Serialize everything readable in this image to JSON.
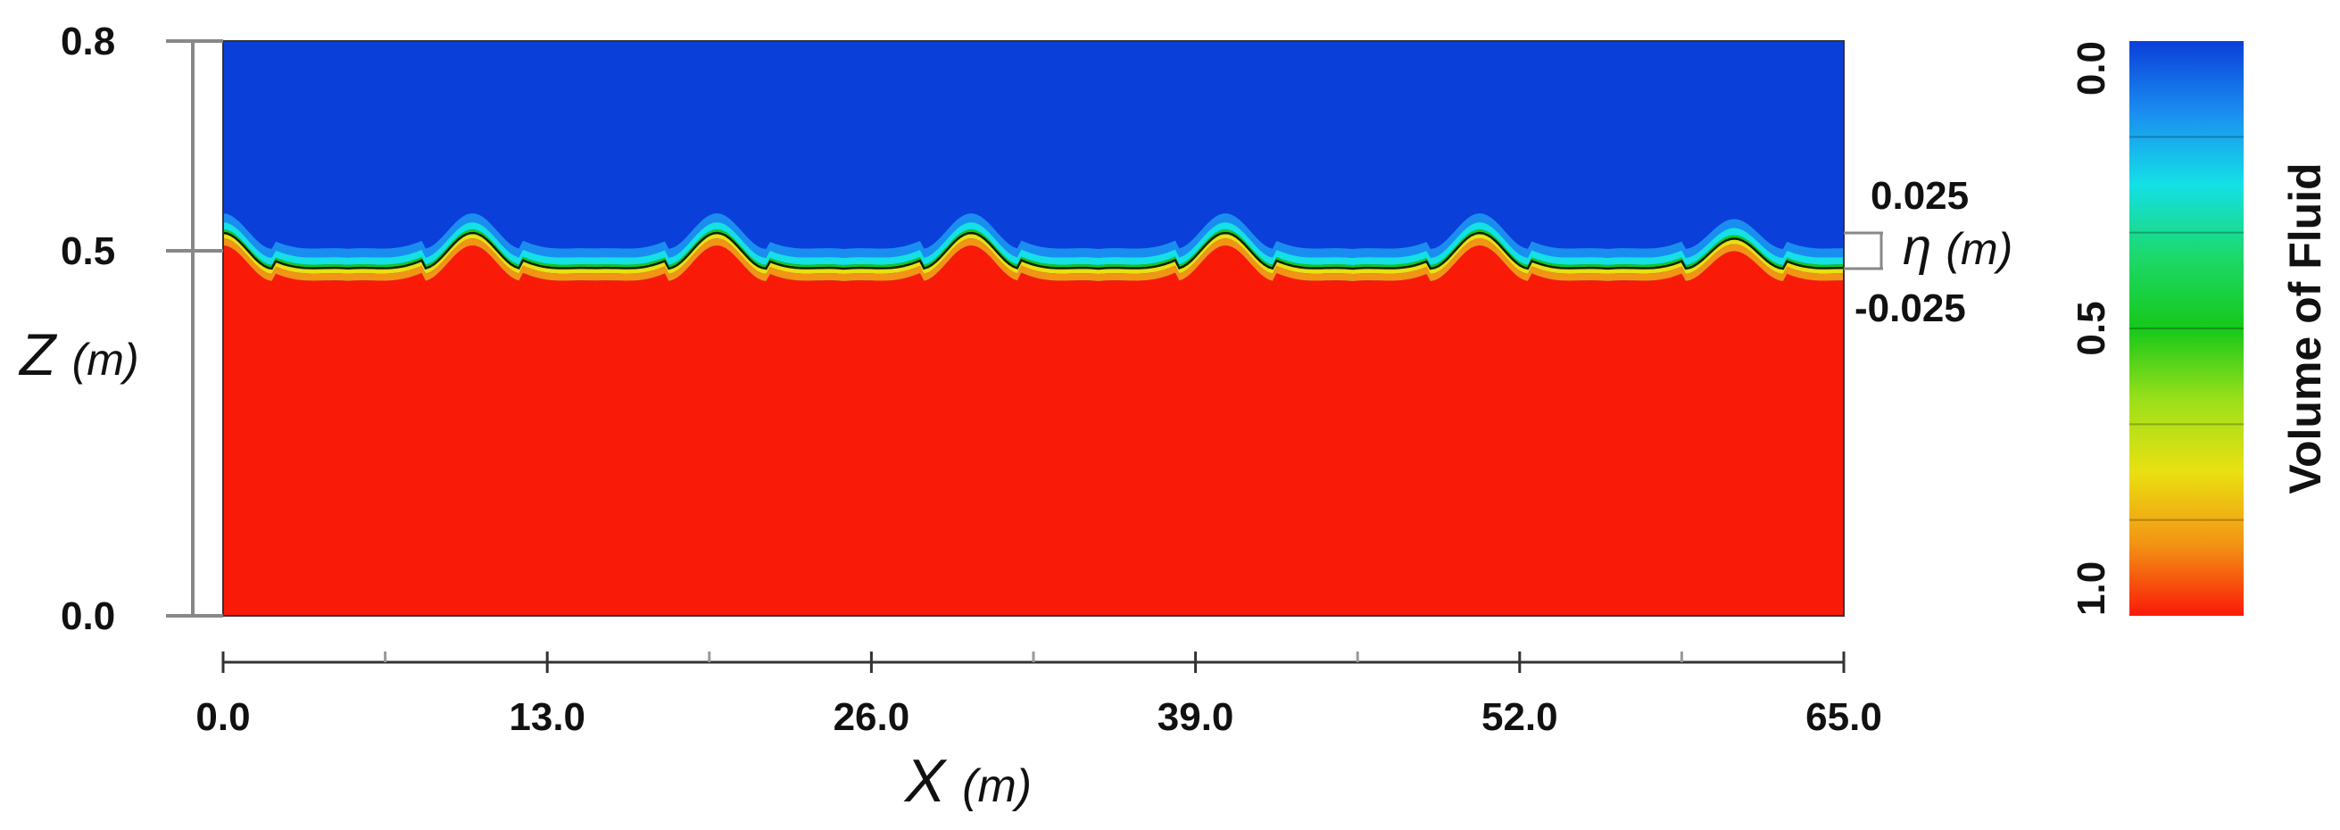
{
  "chart_data": {
    "type": "heatmap",
    "description_field": "Volume of Fluid",
    "x_axis": {
      "label_symbol": "X",
      "label_unit": "(m)",
      "range": [
        0.0,
        65.0
      ],
      "ticks": [
        "0.0",
        "13.0",
        "26.0",
        "39.0",
        "52.0",
        "65.0"
      ],
      "tick_values": [
        0,
        13,
        26,
        39,
        52,
        65
      ],
      "minor_tick_values": [
        6.5,
        19.5,
        32.5,
        45.5,
        58.5
      ]
    },
    "z_axis": {
      "label_symbol": "Z",
      "label_unit": "(m)",
      "range": [
        0.0,
        0.8
      ],
      "ticks": [
        "0.0",
        "0.5",
        "0.8"
      ],
      "tick_values": [
        0.0,
        0.5,
        0.8
      ]
    },
    "eta_axis": {
      "label_symbol": "η",
      "label_unit": "(m)",
      "ticks": [
        "0.025",
        "-0.025"
      ],
      "tick_values": [
        0.025,
        -0.025
      ]
    },
    "colorbar": {
      "title": "Volume of Fluid",
      "range": [
        0.0,
        1.0
      ],
      "ticks": [
        "0.0",
        "0.5",
        "1.0"
      ],
      "tick_values": [
        0.0,
        0.5,
        1.0
      ],
      "colors": [
        "#0a3fd9",
        "#1a8ef0",
        "#14e0e6",
        "#1cd96a",
        "#16c81a",
        "#9ce01a",
        "#eae012",
        "#f29414",
        "#fa1a08"
      ]
    },
    "field": {
      "still_water_level_m": 0.5,
      "water_color": "#fa1a08",
      "air_color": "#0a3fd9",
      "surface_line_color": "#0a1f10",
      "wave_crest_x_m": [
        0.0,
        10.0,
        19.8,
        30.0,
        40.2,
        50.4,
        60.6
      ],
      "wave_crest_eta_m": [
        0.025,
        0.025,
        0.025,
        0.025,
        0.025,
        0.025,
        0.017
      ],
      "wave_trough_eta_m": -0.025,
      "wave_length_m": 10.15
    }
  }
}
